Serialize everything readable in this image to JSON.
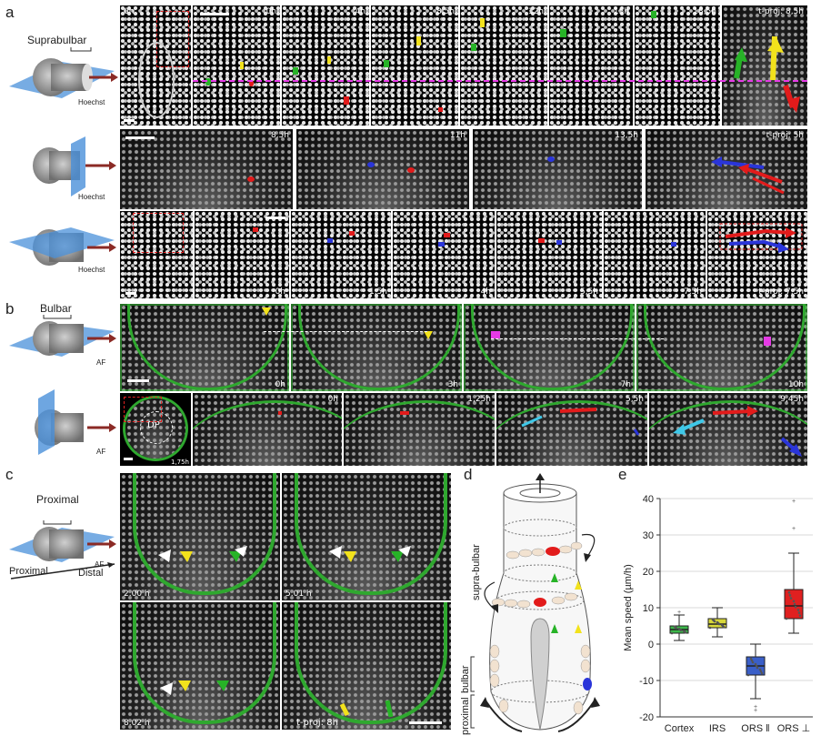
{
  "panel_labels": {
    "a": "a",
    "b": "b",
    "c": "c",
    "d": "d",
    "e": "e"
  },
  "schematic_labels": {
    "suprabulbar": "Suprabulbar",
    "hoechst": "Hoechst",
    "bulbar": "Bulbar",
    "af": "AF",
    "proximal": "Proximal",
    "distal": "Distal"
  },
  "row_a1": {
    "times": [
      "0h",
      "0h",
      "4h",
      "8,5h",
      "12h",
      "15h",
      "18,5h"
    ],
    "tproj": "t-proj: 8,5h"
  },
  "row_a2": {
    "times": [
      "8,5h",
      "11h",
      "13,5h"
    ],
    "tproj": "t-proj: 5h"
  },
  "row_a3": {
    "times": [
      "0h",
      "1,5h",
      "4h",
      "5,5h",
      "7,5h"
    ],
    "tproj": "t-proj: 7,5h"
  },
  "row_b1": {
    "times": [
      "0h",
      "3h",
      "7h",
      "10h"
    ]
  },
  "row_b2": {
    "dp": "DP",
    "inset_time": "1,75h",
    "times": [
      "0h",
      "1,25h",
      "5,5h",
      "9,45h"
    ]
  },
  "row_c": {
    "times": [
      "2.00 h",
      "5.01 h",
      "8.02 h"
    ],
    "tproj": "t-proj: 8h"
  },
  "diagram_d": {
    "labels": [
      "supra-bulbar",
      "bulbar",
      "proximal"
    ]
  },
  "colors": {
    "green": "#27b327",
    "yellow": "#f2e21c",
    "red": "#e21b1b",
    "blue": "#2a35d9",
    "magenta": "#e53ae5",
    "cyan": "#3fc8e8",
    "arrow": "#8b2a25"
  },
  "chart_data": {
    "type": "box",
    "categories": [
      "Cortex",
      "IRS",
      "ORS ‖",
      "ORS ⊥"
    ],
    "ylabel": "Mean speed (µm/h)",
    "xlabel": "",
    "ylim": [
      -20,
      40
    ],
    "yticks": [
      -20,
      -10,
      0,
      10,
      20,
      30,
      40
    ],
    "grid": true,
    "colors": [
      "#3cb84a",
      "#d8d83a",
      "#3a5fc8",
      "#e02020"
    ],
    "boxes": [
      {
        "name": "Cortex",
        "q1": 3,
        "median": 4,
        "q3": 5,
        "whisker_low": 1,
        "whisker_high": 8,
        "outliers": [
          9
        ]
      },
      {
        "name": "IRS",
        "q1": 4.5,
        "median": 5.5,
        "q3": 7,
        "whisker_low": 2,
        "whisker_high": 10,
        "outliers": []
      },
      {
        "name": "ORS ‖",
        "q1": -8.5,
        "median": -6,
        "q3": -3.5,
        "whisker_low": -15,
        "whisker_high": 0,
        "outliers": [
          -17,
          -18
        ]
      },
      {
        "name": "ORS ⊥",
        "q1": 7,
        "median": 10.5,
        "q3": 15,
        "whisker_low": 3,
        "whisker_high": 25,
        "outliers": [
          32,
          39.5
        ]
      }
    ]
  }
}
